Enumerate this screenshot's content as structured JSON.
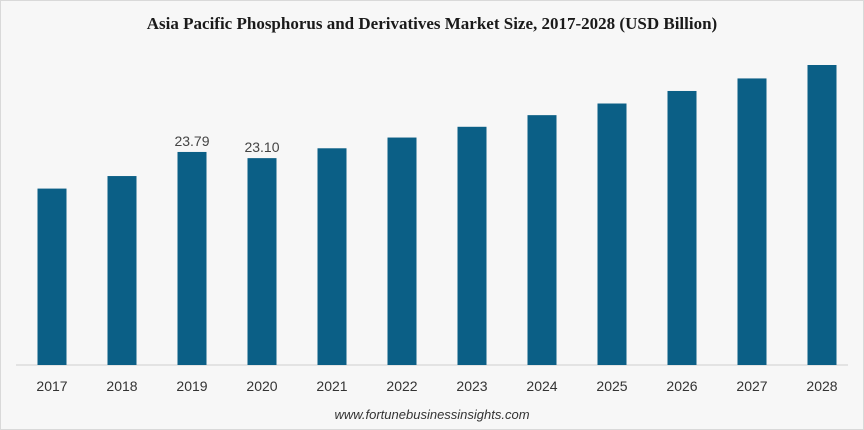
{
  "chart_data": {
    "type": "bar",
    "title": "Asia Pacific Phosphorus and Derivatives Market Size, 2017-2028 (USD Billion)",
    "categories": [
      "2017",
      "2018",
      "2019",
      "2020",
      "2021",
      "2022",
      "2023",
      "2024",
      "2025",
      "2026",
      "2027",
      "2028"
    ],
    "values": [
      19.7,
      21.1,
      23.79,
      23.1,
      24.2,
      25.4,
      26.6,
      27.9,
      29.2,
      30.6,
      32.0,
      33.5
    ],
    "data_labels": {
      "2019": "23.79",
      "2020": "23.10"
    },
    "ylim": [
      0,
      33.5
    ],
    "bar_color": "#0b5f86",
    "grid": false,
    "xlabel": "",
    "ylabel": ""
  },
  "footer": {
    "source": "www.fortunebusinessinsights.com"
  }
}
